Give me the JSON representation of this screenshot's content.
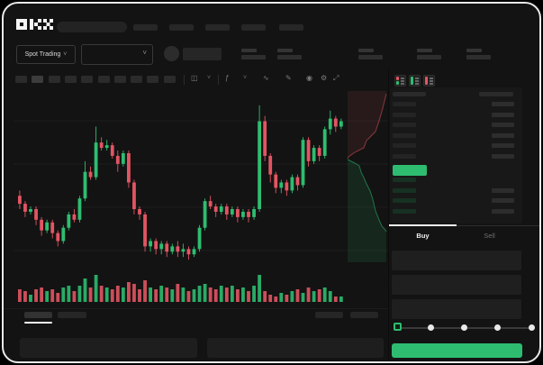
{
  "app": {
    "logo": "OKX"
  },
  "colors": {
    "up_green": "#2ebd70",
    "down_red": "#e25563",
    "panel": "#181818"
  },
  "header": {
    "market_selector_label": "Spot Trading",
    "nav_placeholder_count": 5,
    "stat_placeholder_count": 5
  },
  "toolbar": {
    "timeframe_slots": 10,
    "active_timeframe_index": 1,
    "icons": [
      {
        "name": "chart-style-icon",
        "glyph": "◫"
      },
      {
        "name": "chevron-down-icon",
        "glyph": "˅"
      },
      {
        "name": "indicator-icon",
        "glyph": "ƒ"
      },
      {
        "name": "chevron-down-icon",
        "glyph": "˅"
      },
      {
        "name": "wave-tool-icon",
        "glyph": "∿"
      },
      {
        "name": "draw-tool-icon",
        "glyph": "✎"
      },
      {
        "name": "camera-icon",
        "glyph": "◉"
      },
      {
        "name": "settings-gear-icon",
        "glyph": "⚙"
      },
      {
        "name": "fullscreen-icon",
        "glyph": "⤢"
      }
    ],
    "market_chevron": "˅"
  },
  "side_panel": {
    "tabs": {
      "buy_label": "Buy",
      "sell_label": "Sell"
    },
    "orderbook": {
      "ask_rows": 6,
      "bid_rows": 4,
      "bid_rows_missing_amount": 1
    },
    "amount_slider": {
      "stops": 5,
      "active_stop": 0
    },
    "input_field_count": 3
  },
  "chart_data": {
    "type": "candlestick",
    "title": "",
    "xlabel": "",
    "ylabel": "",
    "value_range": [
      30,
      95
    ],
    "grid": "horizontal-faint",
    "colors": {
      "up": "#2ebd70",
      "down": "#e25563"
    },
    "candles_ochl": [
      [
        57,
        54,
        59,
        52
      ],
      [
        54,
        51,
        55,
        49
      ],
      [
        51,
        52,
        53,
        50
      ],
      [
        52,
        48,
        53,
        46
      ],
      [
        48,
        44,
        49,
        42
      ],
      [
        44,
        47,
        48,
        43
      ],
      [
        47,
        43,
        48,
        41
      ],
      [
        43,
        40,
        44,
        38
      ],
      [
        40,
        45,
        46,
        39
      ],
      [
        45,
        50,
        51,
        44
      ],
      [
        50,
        48,
        52,
        47
      ],
      [
        48,
        56,
        57,
        47
      ],
      [
        56,
        66,
        70,
        55
      ],
      [
        66,
        64,
        68,
        63
      ],
      [
        64,
        77,
        83,
        63
      ],
      [
        77,
        75,
        79,
        74
      ],
      [
        75,
        76,
        78,
        74
      ],
      [
        76,
        72,
        77,
        71
      ],
      [
        72,
        69,
        74,
        66
      ],
      [
        69,
        73,
        74,
        68
      ],
      [
        73,
        62,
        74,
        60
      ],
      [
        62,
        52,
        63,
        50
      ],
      [
        52,
        50,
        53,
        48
      ],
      [
        50,
        38,
        51,
        36
      ],
      [
        38,
        40,
        41,
        36
      ],
      [
        40,
        37,
        41,
        35
      ],
      [
        37,
        39,
        40,
        35
      ],
      [
        39,
        36,
        40,
        34
      ],
      [
        36,
        38,
        39,
        35
      ],
      [
        38,
        36,
        40,
        34
      ],
      [
        36,
        37,
        39,
        34
      ],
      [
        37,
        35,
        38,
        33
      ],
      [
        35,
        37,
        38,
        34
      ],
      [
        37,
        45,
        46,
        36
      ],
      [
        45,
        55,
        56,
        44
      ],
      [
        55,
        53,
        57,
        52
      ],
      [
        53,
        51,
        54,
        49
      ],
      [
        51,
        53,
        54,
        50
      ],
      [
        53,
        50,
        54,
        48
      ],
      [
        50,
        52,
        53,
        49
      ],
      [
        52,
        49,
        53,
        47
      ],
      [
        49,
        51,
        52,
        48
      ],
      [
        51,
        49,
        52,
        47
      ],
      [
        49,
        52,
        53,
        48
      ],
      [
        52,
        85,
        91,
        51
      ],
      [
        85,
        72,
        87,
        70
      ],
      [
        72,
        65,
        73,
        62
      ],
      [
        65,
        60,
        66,
        58
      ],
      [
        60,
        62,
        63,
        58
      ],
      [
        62,
        59,
        63,
        57
      ],
      [
        59,
        64,
        65,
        58
      ],
      [
        64,
        61,
        65,
        59
      ],
      [
        61,
        78,
        79,
        60
      ],
      [
        78,
        70,
        79,
        68
      ],
      [
        70,
        75,
        76,
        69
      ],
      [
        75,
        72,
        76,
        70
      ],
      [
        72,
        82,
        83,
        71
      ],
      [
        82,
        86,
        89,
        80
      ],
      [
        86,
        83,
        87,
        81
      ],
      [
        83,
        85,
        86,
        82
      ]
    ],
    "volumes": [
      7,
      6,
      4,
      7,
      8,
      6,
      7,
      5,
      8,
      9,
      6,
      9,
      13,
      8,
      15,
      9,
      8,
      7,
      9,
      8,
      11,
      10,
      7,
      12,
      8,
      7,
      9,
      8,
      7,
      10,
      8,
      6,
      7,
      9,
      10,
      8,
      7,
      9,
      8,
      9,
      7,
      8,
      6,
      9,
      15,
      6,
      4,
      3,
      5,
      4,
      6,
      7,
      5,
      8,
      6,
      7,
      8,
      6,
      3,
      3
    ],
    "depth_overlay": {
      "asks_boundary": [
        [
          414,
          7
        ],
        [
          409,
          27
        ],
        [
          406,
          37
        ],
        [
          402,
          49
        ],
        [
          392,
          59
        ],
        [
          389,
          67
        ],
        [
          379,
          72
        ],
        [
          372,
          77
        ],
        [
          371,
          79
        ]
      ],
      "bids_boundary": [
        [
          371,
          80
        ],
        [
          379,
          84
        ],
        [
          384,
          87
        ],
        [
          386,
          94
        ],
        [
          389,
          100
        ],
        [
          392,
          107
        ],
        [
          396,
          115
        ],
        [
          399,
          124
        ],
        [
          402,
          137
        ],
        [
          406,
          147
        ],
        [
          409,
          154
        ],
        [
          412,
          157
        ],
        [
          414,
          160
        ]
      ]
    }
  }
}
